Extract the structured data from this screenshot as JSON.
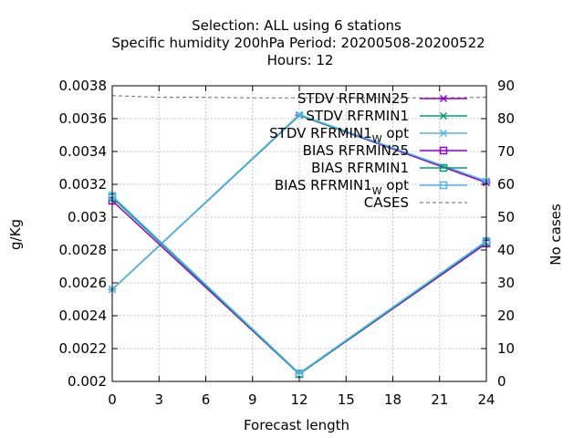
{
  "chart_data": {
    "type": "line",
    "title_lines": [
      "Selection: ALL using     6 stations",
      "Specific humidity 200hPa   Period: 20200508-20200522",
      "Hours:  12"
    ],
    "xlabel": "Forecast length",
    "ylabel": "g/Kg",
    "y2label": "No cases",
    "x": [
      0,
      12,
      24
    ],
    "xlim": [
      0,
      24
    ],
    "xticks": [
      "0",
      "3",
      "6",
      "9",
      "12",
      "15",
      "18",
      "21",
      "24"
    ],
    "ylim": [
      0.002,
      0.0038
    ],
    "yticks": [
      "0.002",
      "0.0022",
      "0.0024",
      "0.0026",
      "0.0028",
      "0.003",
      "0.0032",
      "0.0034",
      "0.0036",
      "0.0038"
    ],
    "y2lim": [
      0,
      90
    ],
    "y2ticks": [
      "0",
      "10",
      "20",
      "30",
      "40",
      "50",
      "60",
      "70",
      "80",
      "90"
    ],
    "grid": true,
    "legend_position": "top-right",
    "series": [
      {
        "name": "STDV RFRMIN25",
        "color": "#9400d3",
        "marker": "asterisk",
        "values": [
          0.00256,
          0.00362,
          0.00321
        ]
      },
      {
        "name": "STDV RFRMIN1",
        "color": "#009e73",
        "marker": "x",
        "values": [
          0.00256,
          0.00362,
          0.00322
        ]
      },
      {
        "name": "STDV RFRMIN1",
        "name_sub": "W",
        "name_suffix": " opt",
        "color": "#56b4e9",
        "marker": "asterisk",
        "values": [
          0.00256,
          0.003625,
          0.00322
        ]
      },
      {
        "name": "BIAS RFRMIN25",
        "color": "#9400d3",
        "marker": "square",
        "values": [
          0.0031,
          0.002045,
          0.00284
        ]
      },
      {
        "name": "BIAS RFRMIN1",
        "color": "#009e73",
        "marker": "square",
        "values": [
          0.00312,
          0.002045,
          0.00285
        ]
      },
      {
        "name": "BIAS RFRMIN1",
        "name_sub": "W",
        "name_suffix": " opt",
        "color": "#56b4e9",
        "marker": "square",
        "values": [
          0.00313,
          0.00205,
          0.002855
        ]
      }
    ],
    "cases": {
      "name": "CASES",
      "color": "#808080",
      "axis": "y2",
      "x": [
        0,
        3,
        6,
        9,
        12,
        15,
        18,
        21,
        24
      ],
      "values": [
        87,
        86.5,
        86.5,
        86.3,
        86.3,
        86.3,
        86.3,
        86.3,
        86.5
      ]
    }
  }
}
